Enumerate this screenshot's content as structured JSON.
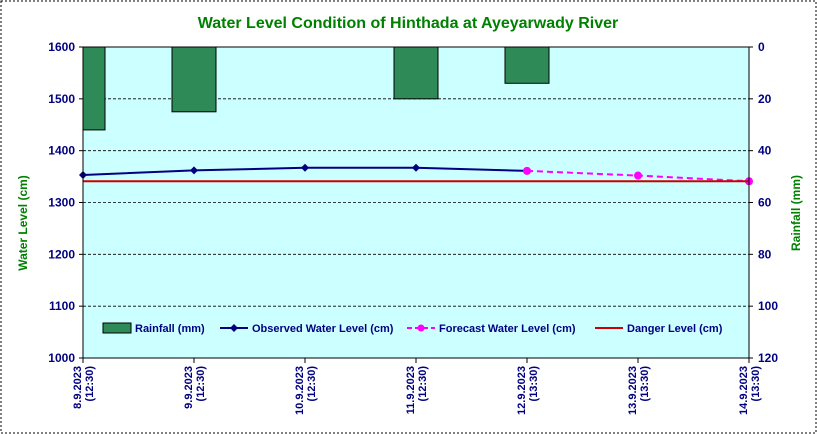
{
  "chart_data": {
    "type": "bar+line",
    "title": "Water Level Condition  of Hinthada  at Ayeyarwady  River",
    "ylabel_left": "Water Level (cm)",
    "ylabel_right": "Rainfall (mm)",
    "ylim_left": [
      1000,
      1600
    ],
    "ylim_right": [
      0,
      120
    ],
    "right_axis_inverted": true,
    "grid": "horizontal dashed",
    "legend_placement": "bottom-inside",
    "y_ticks_left": [
      "1600",
      "1500",
      "1400",
      "1300",
      "1200",
      "1100",
      "1000"
    ],
    "y_ticks_right": [
      "0",
      "20",
      "40",
      "60",
      "80",
      "100",
      "120"
    ],
    "categories": [
      [
        "8.9.2023",
        "(12:30)"
      ],
      [
        "9.9.2023",
        "(12:30)"
      ],
      [
        "10.9.2023",
        "(12:30)"
      ],
      [
        "11.9.2023",
        "(12:30)"
      ],
      [
        "12.9.2023",
        "(13:30)"
      ],
      [
        "13.9.2023",
        "(13:30)"
      ],
      [
        "14.9.2023",
        "(13:30)"
      ]
    ],
    "series": [
      {
        "name": "Rainfall (mm)",
        "kind": "bar",
        "axis": "right",
        "color": "#2e8b57",
        "values": [
          32,
          25,
          0,
          20,
          14,
          0,
          0
        ]
      },
      {
        "name": "Observed Water Level (cm)",
        "kind": "line",
        "axis": "left",
        "color": "#000080",
        "values": [
          1353,
          1362,
          1367,
          1367,
          1361,
          null,
          null
        ]
      },
      {
        "name": "Forecast Water Level (cm)",
        "kind": "line-dashed",
        "axis": "left",
        "color": "#ff00ff",
        "values": [
          null,
          null,
          null,
          null,
          1361,
          1352,
          1341
        ]
      },
      {
        "name": "Danger Level (cm)",
        "kind": "line",
        "axis": "left",
        "color": "#cc0000",
        "values": [
          1341,
          1341,
          1341,
          1341,
          1341,
          1341,
          1341
        ]
      }
    ],
    "colors": {
      "title": "#008000",
      "axis_label": "#008000",
      "tick_label": "#000080",
      "plot_bg": "#ccffff",
      "bar_fill": "#2e8b57"
    }
  }
}
